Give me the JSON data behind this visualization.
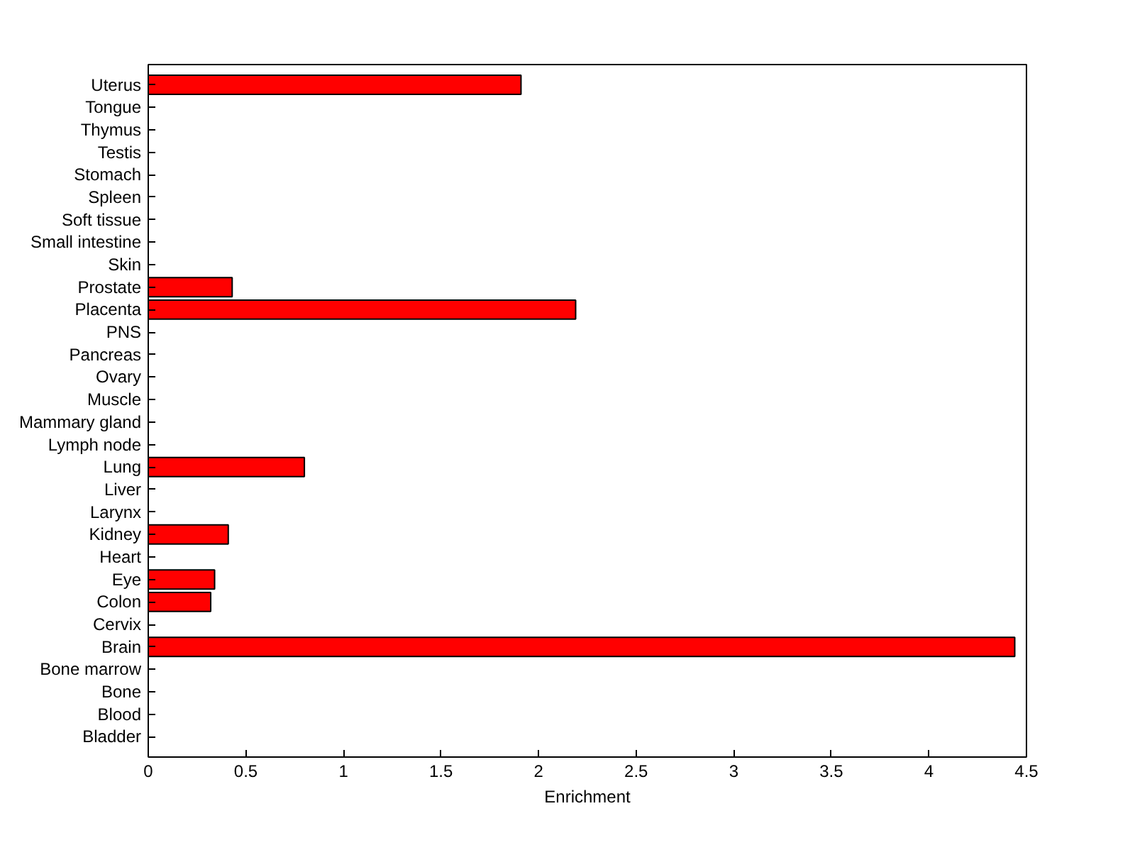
{
  "chart_data": {
    "type": "bar",
    "orientation": "horizontal",
    "xlabel": "Enrichment",
    "categories": [
      "Uterus",
      "Tongue",
      "Thymus",
      "Testis",
      "Stomach",
      "Spleen",
      "Soft tissue",
      "Small intestine",
      "Skin",
      "Prostate",
      "Placenta",
      "PNS",
      "Pancreas",
      "Ovary",
      "Muscle",
      "Mammary gland",
      "Lymph node",
      "Lung",
      "Liver",
      "Larynx",
      "Kidney",
      "Heart",
      "Eye",
      "Colon",
      "Cervix",
      "Brain",
      "Bone marrow",
      "Bone",
      "Blood",
      "Bladder"
    ],
    "values": [
      1.91,
      0,
      0,
      0,
      0,
      0,
      0,
      0,
      0,
      0.43,
      2.19,
      0,
      0,
      0,
      0,
      0,
      0,
      0.8,
      0,
      0,
      0.41,
      0,
      0.34,
      0.32,
      0,
      4.44,
      0,
      0,
      0,
      0
    ],
    "color": "#ff0000",
    "xlim": [
      0,
      4.5
    ],
    "xticks": [
      0,
      0.5,
      1,
      1.5,
      2,
      2.5,
      3,
      3.5,
      4,
      4.5
    ],
    "grid": false
  }
}
